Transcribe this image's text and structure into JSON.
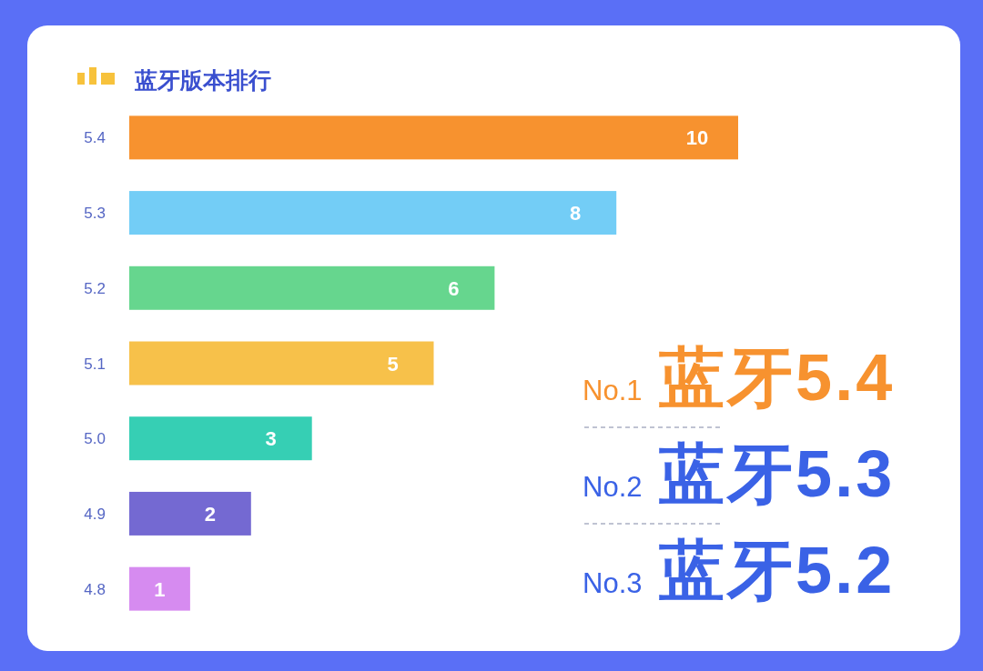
{
  "chart_data": {
    "type": "bar",
    "orientation": "horizontal",
    "title": "蓝牙版本排行",
    "categories": [
      "5.4",
      "5.3",
      "5.2",
      "5.1",
      "5.0",
      "4.9",
      "4.8"
    ],
    "values": [
      10,
      8,
      6,
      5,
      3,
      2,
      1
    ],
    "colors": [
      "#f7922f",
      "#73cdf6",
      "#66d68e",
      "#f7c14a",
      "#36cfb4",
      "#7469d2",
      "#d68bf0"
    ],
    "data_labels": true,
    "tick_labels": "y",
    "annotations": [
      "No.1 蓝牙5.4",
      "No.2 蓝牙5.3",
      "No.3 蓝牙5.2"
    ]
  }
}
